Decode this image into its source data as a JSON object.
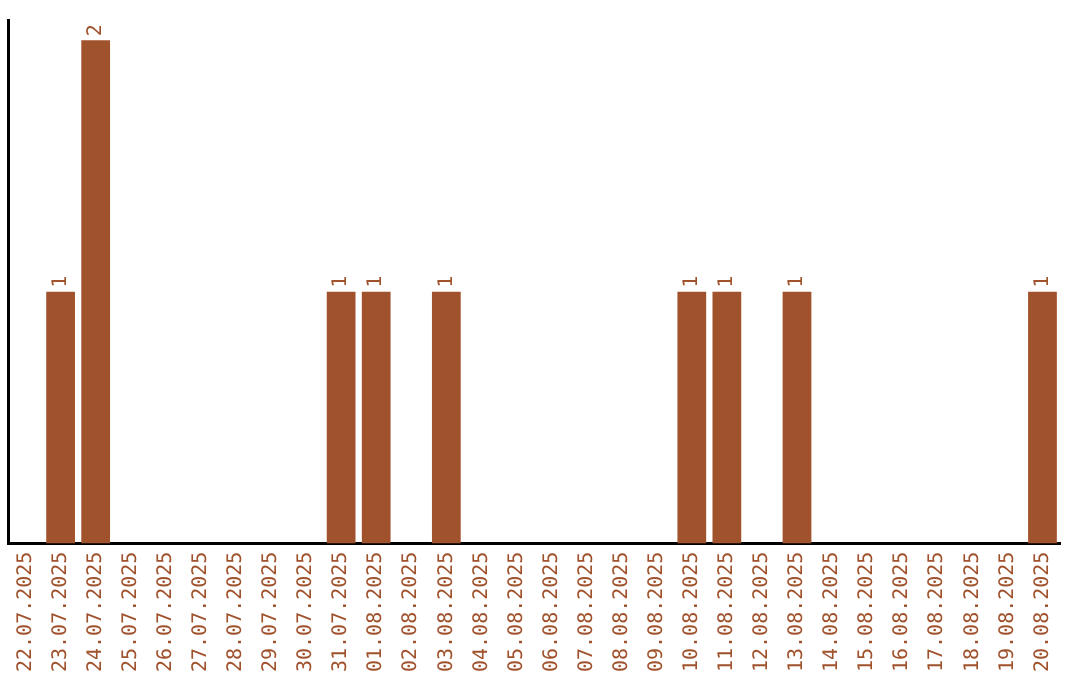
{
  "chart_data": {
    "type": "bar",
    "categories": [
      "22.07.2025",
      "23.07.2025",
      "24.07.2025",
      "25.07.2025",
      "26.07.2025",
      "27.07.2025",
      "28.07.2025",
      "29.07.2025",
      "30.07.2025",
      "31.07.2025",
      "01.08.2025",
      "02.08.2025",
      "03.08.2025",
      "04.08.2025",
      "05.08.2025",
      "06.08.2025",
      "07.08.2025",
      "08.08.2025",
      "09.08.2025",
      "10.08.2025",
      "11.08.2025",
      "12.08.2025",
      "13.08.2025",
      "14.08.2025",
      "15.08.2025",
      "16.08.2025",
      "17.08.2025",
      "18.08.2025",
      "19.08.2025",
      "20.08.2025"
    ],
    "values": [
      0,
      1,
      2,
      0,
      0,
      0,
      0,
      0,
      0,
      1,
      1,
      0,
      1,
      0,
      0,
      0,
      0,
      0,
      0,
      1,
      1,
      0,
      1,
      0,
      0,
      0,
      0,
      0,
      0,
      1
    ],
    "value_labels": [
      null,
      "1",
      "2",
      null,
      null,
      null,
      null,
      null,
      null,
      "1",
      "1",
      null,
      "1",
      null,
      null,
      null,
      null,
      null,
      null,
      "1",
      "1",
      null,
      "1",
      null,
      null,
      null,
      null,
      null,
      null,
      "1"
    ],
    "color": "#a0522d",
    "ylim": [
      0,
      2.08
    ],
    "tick_labels": "x",
    "grid": false,
    "legend": false
  }
}
